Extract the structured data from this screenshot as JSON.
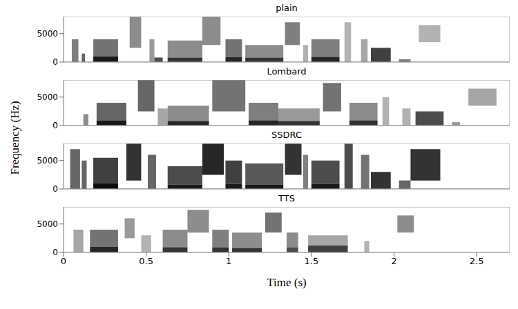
{
  "xlabel": "Time (s)",
  "ylabel": "Frequency (Hz)",
  "chart_data": [
    {
      "type": "heatmap",
      "title": "plain",
      "color": "#000000",
      "xlim": [
        0,
        2.7
      ],
      "xticks": [
        0,
        0.5,
        1,
        1.5,
        2,
        2.5
      ],
      "ylim": [
        0,
        8000
      ],
      "yticks": [
        0,
        5000
      ],
      "tick_labels": "y",
      "cells": [
        {
          "x": [
            0.05,
            0.09
          ],
          "y": [
            0,
            4000
          ],
          "z": 0.5
        },
        {
          "x": [
            0.11,
            0.13
          ],
          "y": [
            0,
            1500
          ],
          "z": 0.6
        },
        {
          "x": [
            0.18,
            0.33
          ],
          "y": [
            0,
            1000
          ],
          "z": 0.9
        },
        {
          "x": [
            0.18,
            0.33
          ],
          "y": [
            1000,
            4000
          ],
          "z": 0.55
        },
        {
          "x": [
            0.4,
            0.47
          ],
          "y": [
            2500,
            8000
          ],
          "z": 0.45
        },
        {
          "x": [
            0.52,
            0.55
          ],
          "y": [
            0,
            4000
          ],
          "z": 0.4
        },
        {
          "x": [
            0.55,
            0.6
          ],
          "y": [
            0,
            800
          ],
          "z": 0.7
        },
        {
          "x": [
            0.63,
            0.84
          ],
          "y": [
            0,
            800
          ],
          "z": 0.8
        },
        {
          "x": [
            0.63,
            0.84
          ],
          "y": [
            800,
            3800
          ],
          "z": 0.45
        },
        {
          "x": [
            0.84,
            0.95
          ],
          "y": [
            3000,
            8000
          ],
          "z": 0.45
        },
        {
          "x": [
            0.98,
            1.08
          ],
          "y": [
            0,
            900
          ],
          "z": 0.85
        },
        {
          "x": [
            0.98,
            1.08
          ],
          "y": [
            900,
            4000
          ],
          "z": 0.55
        },
        {
          "x": [
            1.1,
            1.33
          ],
          "y": [
            0,
            800
          ],
          "z": 0.8
        },
        {
          "x": [
            1.1,
            1.33
          ],
          "y": [
            800,
            3000
          ],
          "z": 0.45
        },
        {
          "x": [
            1.34,
            1.43
          ],
          "y": [
            3000,
            7000
          ],
          "z": 0.5
        },
        {
          "x": [
            1.45,
            1.48
          ],
          "y": [
            0,
            3000
          ],
          "z": 0.3
        },
        {
          "x": [
            1.5,
            1.67
          ],
          "y": [
            0,
            900
          ],
          "z": 0.85
        },
        {
          "x": [
            1.5,
            1.67
          ],
          "y": [
            900,
            4000
          ],
          "z": 0.5
        },
        {
          "x": [
            1.7,
            1.74
          ],
          "y": [
            0,
            7000
          ],
          "z": 0.3
        },
        {
          "x": [
            1.8,
            1.84
          ],
          "y": [
            0,
            4000
          ],
          "z": 0.35
        },
        {
          "x": [
            1.86,
            1.98
          ],
          "y": [
            0,
            2500
          ],
          "z": 0.75
        },
        {
          "x": [
            2.03,
            2.1
          ],
          "y": [
            0,
            500
          ],
          "z": 0.5
        },
        {
          "x": [
            2.15,
            2.28
          ],
          "y": [
            3500,
            6500
          ],
          "z": 0.3
        }
      ]
    },
    {
      "type": "heatmap",
      "title": "Lombard",
      "color": "#000000",
      "xlim": [
        0,
        2.7
      ],
      "xticks": [
        0,
        0.5,
        1,
        1.5,
        2,
        2.5
      ],
      "ylim": [
        0,
        8000
      ],
      "yticks": [
        0,
        5000
      ],
      "tick_labels": "y",
      "cells": [
        {
          "x": [
            0.12,
            0.15
          ],
          "y": [
            0,
            2000
          ],
          "z": 0.45
        },
        {
          "x": [
            0.2,
            0.38
          ],
          "y": [
            0,
            900
          ],
          "z": 0.9
        },
        {
          "x": [
            0.2,
            0.38
          ],
          "y": [
            900,
            4000
          ],
          "z": 0.6
        },
        {
          "x": [
            0.45,
            0.55
          ],
          "y": [
            2500,
            8000
          ],
          "z": 0.6
        },
        {
          "x": [
            0.57,
            0.63
          ],
          "y": [
            0,
            3000
          ],
          "z": 0.35
        },
        {
          "x": [
            0.63,
            0.88
          ],
          "y": [
            0,
            800
          ],
          "z": 0.85
        },
        {
          "x": [
            0.63,
            0.88
          ],
          "y": [
            800,
            3500
          ],
          "z": 0.45
        },
        {
          "x": [
            0.9,
            1.1
          ],
          "y": [
            2500,
            8000
          ],
          "z": 0.55
        },
        {
          "x": [
            1.12,
            1.3
          ],
          "y": [
            0,
            900
          ],
          "z": 0.85
        },
        {
          "x": [
            1.12,
            1.3
          ],
          "y": [
            900,
            4000
          ],
          "z": 0.5
        },
        {
          "x": [
            1.3,
            1.55
          ],
          "y": [
            0,
            800
          ],
          "z": 0.8
        },
        {
          "x": [
            1.3,
            1.55
          ],
          "y": [
            800,
            3000
          ],
          "z": 0.4
        },
        {
          "x": [
            1.57,
            1.68
          ],
          "y": [
            2500,
            7500
          ],
          "z": 0.55
        },
        {
          "x": [
            1.73,
            1.9
          ],
          "y": [
            0,
            900
          ],
          "z": 0.8
        },
        {
          "x": [
            1.73,
            1.9
          ],
          "y": [
            900,
            4000
          ],
          "z": 0.45
        },
        {
          "x": [
            1.93,
            1.97
          ],
          "y": [
            0,
            5000
          ],
          "z": 0.3
        },
        {
          "x": [
            2.05,
            2.1
          ],
          "y": [
            0,
            3000
          ],
          "z": 0.3
        },
        {
          "x": [
            2.13,
            2.3
          ],
          "y": [
            0,
            2500
          ],
          "z": 0.7
        },
        {
          "x": [
            2.35,
            2.4
          ],
          "y": [
            0,
            600
          ],
          "z": 0.4
        },
        {
          "x": [
            2.45,
            2.62
          ],
          "y": [
            3500,
            6500
          ],
          "z": 0.35
        }
      ]
    },
    {
      "type": "heatmap",
      "title": "SSDRC",
      "color": "#000000",
      "xlim": [
        0,
        2.7
      ],
      "xticks": [
        0,
        0.5,
        1,
        1.5,
        2,
        2.5
      ],
      "ylim": [
        0,
        8000
      ],
      "yticks": [
        0,
        5000
      ],
      "tick_labels": "y",
      "cells": [
        {
          "x": [
            0.04,
            0.1
          ],
          "y": [
            0,
            7000
          ],
          "z": 0.6
        },
        {
          "x": [
            0.11,
            0.14
          ],
          "y": [
            0,
            5000
          ],
          "z": 0.6
        },
        {
          "x": [
            0.18,
            0.33
          ],
          "y": [
            0,
            1000
          ],
          "z": 0.95
        },
        {
          "x": [
            0.18,
            0.33
          ],
          "y": [
            1000,
            5500
          ],
          "z": 0.75
        },
        {
          "x": [
            0.38,
            0.47
          ],
          "y": [
            1500,
            8000
          ],
          "z": 0.8
        },
        {
          "x": [
            0.51,
            0.56
          ],
          "y": [
            0,
            6000
          ],
          "z": 0.6
        },
        {
          "x": [
            0.63,
            0.84
          ],
          "y": [
            0,
            800
          ],
          "z": 0.9
        },
        {
          "x": [
            0.63,
            0.84
          ],
          "y": [
            800,
            4000
          ],
          "z": 0.7
        },
        {
          "x": [
            0.84,
            0.97
          ],
          "y": [
            2500,
            8000
          ],
          "z": 0.85
        },
        {
          "x": [
            0.98,
            1.08
          ],
          "y": [
            0,
            900
          ],
          "z": 0.9
        },
        {
          "x": [
            0.98,
            1.08
          ],
          "y": [
            900,
            5000
          ],
          "z": 0.75
        },
        {
          "x": [
            1.1,
            1.33
          ],
          "y": [
            0,
            800
          ],
          "z": 0.9
        },
        {
          "x": [
            1.1,
            1.33
          ],
          "y": [
            800,
            4500
          ],
          "z": 0.65
        },
        {
          "x": [
            1.34,
            1.44
          ],
          "y": [
            2500,
            8000
          ],
          "z": 0.8
        },
        {
          "x": [
            1.45,
            1.48
          ],
          "y": [
            0,
            6000
          ],
          "z": 0.5
        },
        {
          "x": [
            1.5,
            1.67
          ],
          "y": [
            0,
            900
          ],
          "z": 0.9
        },
        {
          "x": [
            1.5,
            1.67
          ],
          "y": [
            900,
            5000
          ],
          "z": 0.7
        },
        {
          "x": [
            1.7,
            1.75
          ],
          "y": [
            0,
            8000
          ],
          "z": 0.7
        },
        {
          "x": [
            1.8,
            1.85
          ],
          "y": [
            0,
            6000
          ],
          "z": 0.55
        },
        {
          "x": [
            1.86,
            1.98
          ],
          "y": [
            0,
            3000
          ],
          "z": 0.8
        },
        {
          "x": [
            2.03,
            2.1
          ],
          "y": [
            0,
            1500
          ],
          "z": 0.6
        },
        {
          "x": [
            2.1,
            2.28
          ],
          "y": [
            1500,
            7000
          ],
          "z": 0.8
        }
      ]
    },
    {
      "type": "heatmap",
      "title": "TTS",
      "color": "#000000",
      "xlim": [
        0,
        2.7
      ],
      "xticks": [
        0,
        0.5,
        1,
        1.5,
        2,
        2.5
      ],
      "ylim": [
        0,
        8000
      ],
      "yticks": [
        0,
        5000
      ],
      "tick_labels": true,
      "cells": [
        {
          "x": [
            0.06,
            0.12
          ],
          "y": [
            0,
            4000
          ],
          "z": 0.35
        },
        {
          "x": [
            0.16,
            0.33
          ],
          "y": [
            0,
            1000
          ],
          "z": 0.85
        },
        {
          "x": [
            0.16,
            0.33
          ],
          "y": [
            1000,
            4000
          ],
          "z": 0.55
        },
        {
          "x": [
            0.37,
            0.43
          ],
          "y": [
            2500,
            6000
          ],
          "z": 0.4
        },
        {
          "x": [
            0.47,
            0.53
          ],
          "y": [
            0,
            3000
          ],
          "z": 0.3
        },
        {
          "x": [
            0.6,
            0.75
          ],
          "y": [
            0,
            900
          ],
          "z": 0.8
        },
        {
          "x": [
            0.6,
            0.75
          ],
          "y": [
            900,
            4000
          ],
          "z": 0.45
        },
        {
          "x": [
            0.75,
            0.88
          ],
          "y": [
            3500,
            7500
          ],
          "z": 0.45
        },
        {
          "x": [
            0.9,
            1.0
          ],
          "y": [
            0,
            900
          ],
          "z": 0.8
        },
        {
          "x": [
            0.9,
            1.0
          ],
          "y": [
            900,
            4000
          ],
          "z": 0.5
        },
        {
          "x": [
            1.02,
            1.2
          ],
          "y": [
            0,
            800
          ],
          "z": 0.8
        },
        {
          "x": [
            1.02,
            1.2
          ],
          "y": [
            800,
            3500
          ],
          "z": 0.45
        },
        {
          "x": [
            1.22,
            1.32
          ],
          "y": [
            3500,
            7000
          ],
          "z": 0.55
        },
        {
          "x": [
            1.35,
            1.42
          ],
          "y": [
            0,
            900
          ],
          "z": 0.7
        },
        {
          "x": [
            1.35,
            1.42
          ],
          "y": [
            900,
            3500
          ],
          "z": 0.45
        },
        {
          "x": [
            1.48,
            1.72
          ],
          "y": [
            0,
            1200
          ],
          "z": 0.75
        },
        {
          "x": [
            1.48,
            1.72
          ],
          "y": [
            1200,
            3000
          ],
          "z": 0.35
        },
        {
          "x": [
            1.82,
            1.85
          ],
          "y": [
            0,
            2000
          ],
          "z": 0.3
        },
        {
          "x": [
            2.02,
            2.12
          ],
          "y": [
            3500,
            6500
          ],
          "z": 0.45
        }
      ]
    }
  ]
}
